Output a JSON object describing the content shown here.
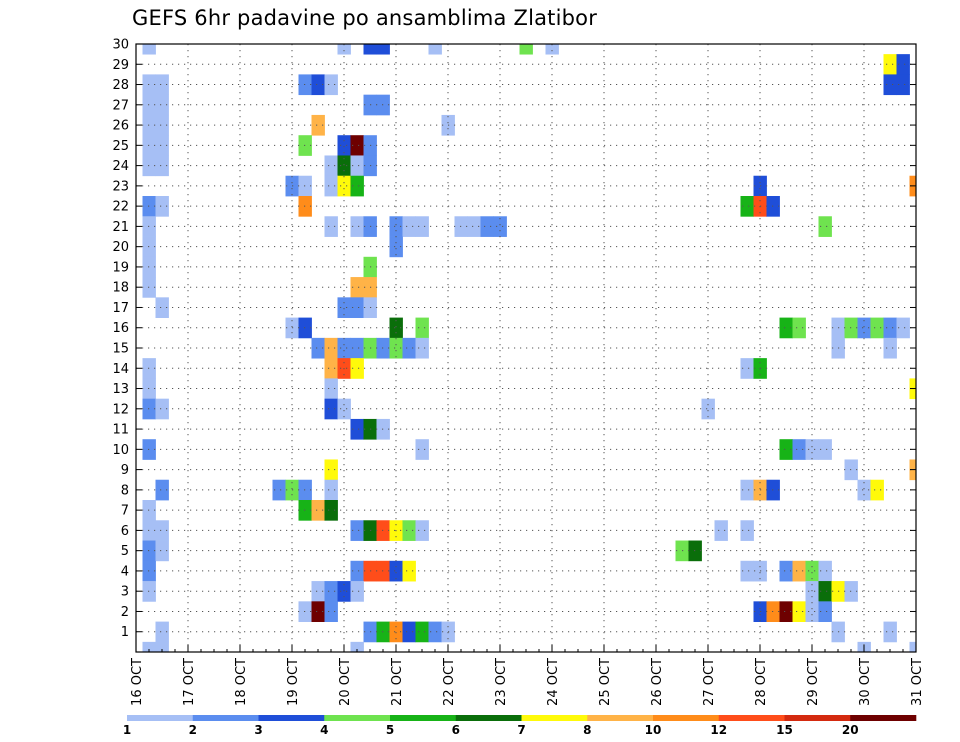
{
  "chart_data": {
    "type": "heatmap",
    "title": "GEFS 6hr padavine po ansamblima Zlatibor",
    "xlabel": "",
    "ylabel": "",
    "x_tick_labels": [
      "16 OCT",
      "17 OCT",
      "18 OCT",
      "19 OCT",
      "20 OCT",
      "21 OCT",
      "22 OCT",
      "23 OCT",
      "24 OCT",
      "25 OCT",
      "26 OCT",
      "27 OCT",
      "28 OCT",
      "29 OCT",
      "30 OCT",
      "31 OCT"
    ],
    "y_tick_labels": [
      "1",
      "2",
      "3",
      "4",
      "5",
      "6",
      "7",
      "8",
      "9",
      "10",
      "11",
      "12",
      "13",
      "14",
      "15",
      "16",
      "17",
      "18",
      "19",
      "20",
      "21",
      "22",
      "23",
      "24",
      "25",
      "26",
      "27",
      "28",
      "29",
      "30"
    ],
    "x_range": [
      0,
      15
    ],
    "y_range": [
      0,
      30
    ],
    "time_step_days": 0.25,
    "grid": true,
    "legend_position": "bottom",
    "legend": {
      "labels": [
        "1",
        "2",
        "3",
        "4",
        "5",
        "6",
        "7",
        "8",
        "10",
        "12",
        "15",
        "20"
      ],
      "colors": [
        "#a6bff5",
        "#5b8def",
        "#1f4ed8",
        "#6fe34f",
        "#17b317",
        "#0a6e0a",
        "#fffa0a",
        "#ffb347",
        "#ff8c1a",
        "#ff4d1a",
        "#d42a0f",
        "#6e0000"
      ]
    },
    "level_colors": {
      "1": "#a6bff5",
      "2": "#5b8def",
      "3": "#1f4ed8",
      "4": "#6fe34f",
      "5": "#17b317",
      "6": "#0a6e0a",
      "7": "#fffa0a",
      "8": "#ffb347",
      "10": "#ff8c1a",
      "12": "#ff4d1a",
      "15": "#d42a0f",
      "20": "#6e0000"
    },
    "cells": [
      {
        "x": 0.25,
        "y": 30,
        "v": 1
      },
      {
        "x": 4.0,
        "y": 30,
        "v": 1
      },
      {
        "x": 4.5,
        "y": 30,
        "v": 3
      },
      {
        "x": 4.75,
        "y": 30,
        "v": 3
      },
      {
        "x": 5.75,
        "y": 30,
        "v": 1
      },
      {
        "x": 7.5,
        "y": 30,
        "v": 4
      },
      {
        "x": 8.0,
        "y": 30,
        "v": 1
      },
      {
        "x": 14.5,
        "y": 29,
        "v": 7
      },
      {
        "x": 14.75,
        "y": 29,
        "v": 3
      },
      {
        "x": 0.25,
        "y": 28,
        "v": 1
      },
      {
        "x": 0.5,
        "y": 28,
        "v": 1
      },
      {
        "x": 3.25,
        "y": 28,
        "v": 2
      },
      {
        "x": 3.5,
        "y": 28,
        "v": 3
      },
      {
        "x": 3.75,
        "y": 28,
        "v": 1
      },
      {
        "x": 14.5,
        "y": 28,
        "v": 3
      },
      {
        "x": 14.75,
        "y": 28,
        "v": 3
      },
      {
        "x": 0.25,
        "y": 27,
        "v": 1
      },
      {
        "x": 0.5,
        "y": 27,
        "v": 1
      },
      {
        "x": 4.5,
        "y": 27,
        "v": 2
      },
      {
        "x": 4.75,
        "y": 27,
        "v": 2
      },
      {
        "x": 0.25,
        "y": 26,
        "v": 1
      },
      {
        "x": 0.5,
        "y": 26,
        "v": 1
      },
      {
        "x": 3.5,
        "y": 26,
        "v": 8
      },
      {
        "x": 6.0,
        "y": 26,
        "v": 1
      },
      {
        "x": 0.25,
        "y": 25,
        "v": 1
      },
      {
        "x": 0.5,
        "y": 25,
        "v": 1
      },
      {
        "x": 3.25,
        "y": 25,
        "v": 4
      },
      {
        "x": 4.0,
        "y": 25,
        "v": 3
      },
      {
        "x": 4.25,
        "y": 25,
        "v": 20
      },
      {
        "x": 4.5,
        "y": 25,
        "v": 2
      },
      {
        "x": 0.25,
        "y": 24,
        "v": 1
      },
      {
        "x": 0.5,
        "y": 24,
        "v": 1
      },
      {
        "x": 3.75,
        "y": 24,
        "v": 1
      },
      {
        "x": 4.0,
        "y": 24,
        "v": 6
      },
      {
        "x": 4.25,
        "y": 24,
        "v": 1
      },
      {
        "x": 4.5,
        "y": 24,
        "v": 2
      },
      {
        "x": 3.0,
        "y": 23,
        "v": 2
      },
      {
        "x": 3.25,
        "y": 23,
        "v": 1
      },
      {
        "x": 3.75,
        "y": 23,
        "v": 1
      },
      {
        "x": 4.0,
        "y": 23,
        "v": 7
      },
      {
        "x": 4.25,
        "y": 23,
        "v": 5
      },
      {
        "x": 12.0,
        "y": 23,
        "v": 3
      },
      {
        "x": 15.0,
        "y": 23,
        "v": 10
      },
      {
        "x": 15.25,
        "y": 23,
        "v": 1
      },
      {
        "x": 0.25,
        "y": 22,
        "v": 2
      },
      {
        "x": 0.5,
        "y": 22,
        "v": 1
      },
      {
        "x": 3.25,
        "y": 22,
        "v": 10
      },
      {
        "x": 11.75,
        "y": 22,
        "v": 5
      },
      {
        "x": 12.0,
        "y": 22,
        "v": 12
      },
      {
        "x": 12.25,
        "y": 22,
        "v": 3
      },
      {
        "x": 0.25,
        "y": 21,
        "v": 1
      },
      {
        "x": 3.75,
        "y": 21,
        "v": 1
      },
      {
        "x": 4.25,
        "y": 21,
        "v": 1
      },
      {
        "x": 4.5,
        "y": 21,
        "v": 2
      },
      {
        "x": 5.0,
        "y": 21,
        "v": 2
      },
      {
        "x": 5.25,
        "y": 21,
        "v": 1
      },
      {
        "x": 5.5,
        "y": 21,
        "v": 1
      },
      {
        "x": 6.25,
        "y": 21,
        "v": 1
      },
      {
        "x": 6.5,
        "y": 21,
        "v": 1
      },
      {
        "x": 6.75,
        "y": 21,
        "v": 2
      },
      {
        "x": 7.0,
        "y": 21,
        "v": 2
      },
      {
        "x": 13.25,
        "y": 21,
        "v": 4
      },
      {
        "x": 0.25,
        "y": 20,
        "v": 1
      },
      {
        "x": 5.0,
        "y": 20,
        "v": 2
      },
      {
        "x": 0.25,
        "y": 19,
        "v": 1
      },
      {
        "x": 4.5,
        "y": 19,
        "v": 4
      },
      {
        "x": 0.25,
        "y": 18,
        "v": 1
      },
      {
        "x": 4.25,
        "y": 18,
        "v": 8
      },
      {
        "x": 4.5,
        "y": 18,
        "v": 8
      },
      {
        "x": 0.5,
        "y": 17,
        "v": 1
      },
      {
        "x": 4.0,
        "y": 17,
        "v": 2
      },
      {
        "x": 4.25,
        "y": 17,
        "v": 2
      },
      {
        "x": 4.5,
        "y": 17,
        "v": 1
      },
      {
        "x": 3.0,
        "y": 16,
        "v": 1
      },
      {
        "x": 3.25,
        "y": 16,
        "v": 3
      },
      {
        "x": 5.0,
        "y": 16,
        "v": 6
      },
      {
        "x": 5.5,
        "y": 16,
        "v": 4
      },
      {
        "x": 12.5,
        "y": 16,
        "v": 5
      },
      {
        "x": 12.75,
        "y": 16,
        "v": 4
      },
      {
        "x": 13.5,
        "y": 16,
        "v": 1
      },
      {
        "x": 13.75,
        "y": 16,
        "v": 4
      },
      {
        "x": 14.0,
        "y": 16,
        "v": 2
      },
      {
        "x": 14.25,
        "y": 16,
        "v": 4
      },
      {
        "x": 14.5,
        "y": 16,
        "v": 2
      },
      {
        "x": 14.75,
        "y": 16,
        "v": 1
      },
      {
        "x": 3.5,
        "y": 15,
        "v": 2
      },
      {
        "x": 3.75,
        "y": 15,
        "v": 8
      },
      {
        "x": 4.0,
        "y": 15,
        "v": 2
      },
      {
        "x": 4.25,
        "y": 15,
        "v": 2
      },
      {
        "x": 4.5,
        "y": 15,
        "v": 4
      },
      {
        "x": 4.75,
        "y": 15,
        "v": 2
      },
      {
        "x": 5.0,
        "y": 15,
        "v": 4
      },
      {
        "x": 5.25,
        "y": 15,
        "v": 2
      },
      {
        "x": 5.5,
        "y": 15,
        "v": 1
      },
      {
        "x": 13.5,
        "y": 15,
        "v": 1
      },
      {
        "x": 14.5,
        "y": 15,
        "v": 1
      },
      {
        "x": 0.25,
        "y": 14,
        "v": 1
      },
      {
        "x": 3.75,
        "y": 14,
        "v": 8
      },
      {
        "x": 4.0,
        "y": 14,
        "v": 12
      },
      {
        "x": 4.25,
        "y": 14,
        "v": 7
      },
      {
        "x": 11.75,
        "y": 14,
        "v": 1
      },
      {
        "x": 12.0,
        "y": 14,
        "v": 5
      },
      {
        "x": 0.25,
        "y": 13,
        "v": 1
      },
      {
        "x": 3.75,
        "y": 13,
        "v": 1
      },
      {
        "x": 15.0,
        "y": 13,
        "v": 7
      },
      {
        "x": 15.25,
        "y": 13,
        "v": 1
      },
      {
        "x": 15.5,
        "y": 13,
        "v": 2
      },
      {
        "x": 0.25,
        "y": 12,
        "v": 2
      },
      {
        "x": 0.5,
        "y": 12,
        "v": 1
      },
      {
        "x": 3.75,
        "y": 12,
        "v": 3
      },
      {
        "x": 4.0,
        "y": 12,
        "v": 1
      },
      {
        "x": 11.0,
        "y": 12,
        "v": 1
      },
      {
        "x": 4.25,
        "y": 11,
        "v": 3
      },
      {
        "x": 4.5,
        "y": 11,
        "v": 6
      },
      {
        "x": 4.75,
        "y": 11,
        "v": 1
      },
      {
        "x": 0.25,
        "y": 10,
        "v": 2
      },
      {
        "x": 5.5,
        "y": 10,
        "v": 1
      },
      {
        "x": 12.5,
        "y": 10,
        "v": 5
      },
      {
        "x": 12.75,
        "y": 10,
        "v": 2
      },
      {
        "x": 13.0,
        "y": 10,
        "v": 1
      },
      {
        "x": 13.25,
        "y": 10,
        "v": 1
      },
      {
        "x": 3.75,
        "y": 9,
        "v": 7
      },
      {
        "x": 13.75,
        "y": 9,
        "v": 1
      },
      {
        "x": 15.0,
        "y": 9,
        "v": 8
      },
      {
        "x": 15.25,
        "y": 9,
        "v": 4
      },
      {
        "x": 15.5,
        "y": 9,
        "v": 3
      },
      {
        "x": 0.5,
        "y": 8,
        "v": 2
      },
      {
        "x": 2.75,
        "y": 8,
        "v": 2
      },
      {
        "x": 3.0,
        "y": 8,
        "v": 4
      },
      {
        "x": 3.25,
        "y": 8,
        "v": 2
      },
      {
        "x": 3.75,
        "y": 8,
        "v": 1
      },
      {
        "x": 11.75,
        "y": 8,
        "v": 1
      },
      {
        "x": 12.0,
        "y": 8,
        "v": 8
      },
      {
        "x": 12.25,
        "y": 8,
        "v": 3
      },
      {
        "x": 14.0,
        "y": 8,
        "v": 1
      },
      {
        "x": 14.25,
        "y": 8,
        "v": 7
      },
      {
        "x": 0.25,
        "y": 7,
        "v": 1
      },
      {
        "x": 3.25,
        "y": 7,
        "v": 5
      },
      {
        "x": 3.5,
        "y": 7,
        "v": 8
      },
      {
        "x": 3.75,
        "y": 7,
        "v": 6
      },
      {
        "x": 0.25,
        "y": 6,
        "v": 1
      },
      {
        "x": 0.5,
        "y": 6,
        "v": 1
      },
      {
        "x": 4.25,
        "y": 6,
        "v": 2
      },
      {
        "x": 4.5,
        "y": 6,
        "v": 6
      },
      {
        "x": 4.75,
        "y": 6,
        "v": 12
      },
      {
        "x": 5.0,
        "y": 6,
        "v": 7
      },
      {
        "x": 5.25,
        "y": 6,
        "v": 4
      },
      {
        "x": 5.5,
        "y": 6,
        "v": 1
      },
      {
        "x": 11.25,
        "y": 6,
        "v": 1
      },
      {
        "x": 11.75,
        "y": 6,
        "v": 1
      },
      {
        "x": 0.25,
        "y": 5,
        "v": 2
      },
      {
        "x": 0.5,
        "y": 5,
        "v": 1
      },
      {
        "x": 10.5,
        "y": 5,
        "v": 4
      },
      {
        "x": 10.75,
        "y": 5,
        "v": 6
      },
      {
        "x": 0.25,
        "y": 4,
        "v": 2
      },
      {
        "x": 4.25,
        "y": 4,
        "v": 2
      },
      {
        "x": 4.5,
        "y": 4,
        "v": 12
      },
      {
        "x": 4.75,
        "y": 4,
        "v": 12
      },
      {
        "x": 5.0,
        "y": 4,
        "v": 3
      },
      {
        "x": 5.25,
        "y": 4,
        "v": 7
      },
      {
        "x": 11.75,
        "y": 4,
        "v": 1
      },
      {
        "x": 12.0,
        "y": 4,
        "v": 1
      },
      {
        "x": 12.5,
        "y": 4,
        "v": 2
      },
      {
        "x": 12.75,
        "y": 4,
        "v": 8
      },
      {
        "x": 13.0,
        "y": 4,
        "v": 4
      },
      {
        "x": 13.25,
        "y": 4,
        "v": 1
      },
      {
        "x": 0.25,
        "y": 3,
        "v": 1
      },
      {
        "x": 3.5,
        "y": 3,
        "v": 1
      },
      {
        "x": 3.75,
        "y": 3,
        "v": 2
      },
      {
        "x": 4.0,
        "y": 3,
        "v": 3
      },
      {
        "x": 4.25,
        "y": 3,
        "v": 1
      },
      {
        "x": 13.0,
        "y": 3,
        "v": 1
      },
      {
        "x": 13.25,
        "y": 3,
        "v": 6
      },
      {
        "x": 13.5,
        "y": 3,
        "v": 7
      },
      {
        "x": 13.75,
        "y": 3,
        "v": 1
      },
      {
        "x": 3.25,
        "y": 2,
        "v": 1
      },
      {
        "x": 3.5,
        "y": 2,
        "v": 20
      },
      {
        "x": 3.75,
        "y": 2,
        "v": 2
      },
      {
        "x": 12.0,
        "y": 2,
        "v": 3
      },
      {
        "x": 12.25,
        "y": 2,
        "v": 10
      },
      {
        "x": 12.5,
        "y": 2,
        "v": 20
      },
      {
        "x": 12.75,
        "y": 2,
        "v": 7
      },
      {
        "x": 13.0,
        "y": 2,
        "v": 1
      },
      {
        "x": 13.25,
        "y": 2,
        "v": 2
      },
      {
        "x": 0.5,
        "y": 1,
        "v": 1
      },
      {
        "x": 4.5,
        "y": 1,
        "v": 2
      },
      {
        "x": 4.75,
        "y": 1,
        "v": 5
      },
      {
        "x": 5.0,
        "y": 1,
        "v": 10
      },
      {
        "x": 5.25,
        "y": 1,
        "v": 3
      },
      {
        "x": 5.5,
        "y": 1,
        "v": 5
      },
      {
        "x": 5.75,
        "y": 1,
        "v": 2
      },
      {
        "x": 6.0,
        "y": 1,
        "v": 1
      },
      {
        "x": 13.5,
        "y": 1,
        "v": 1
      },
      {
        "x": 14.5,
        "y": 1,
        "v": 1
      },
      {
        "x": 0.25,
        "y": 0,
        "v": 1
      },
      {
        "x": 0.5,
        "y": 0,
        "v": 1
      },
      {
        "x": 4.25,
        "y": 0,
        "v": 1
      },
      {
        "x": 14.0,
        "y": 0,
        "v": 1
      },
      {
        "x": 15.0,
        "y": 0,
        "v": 1
      },
      {
        "x": 15.25,
        "y": 0,
        "v": 1
      }
    ]
  }
}
